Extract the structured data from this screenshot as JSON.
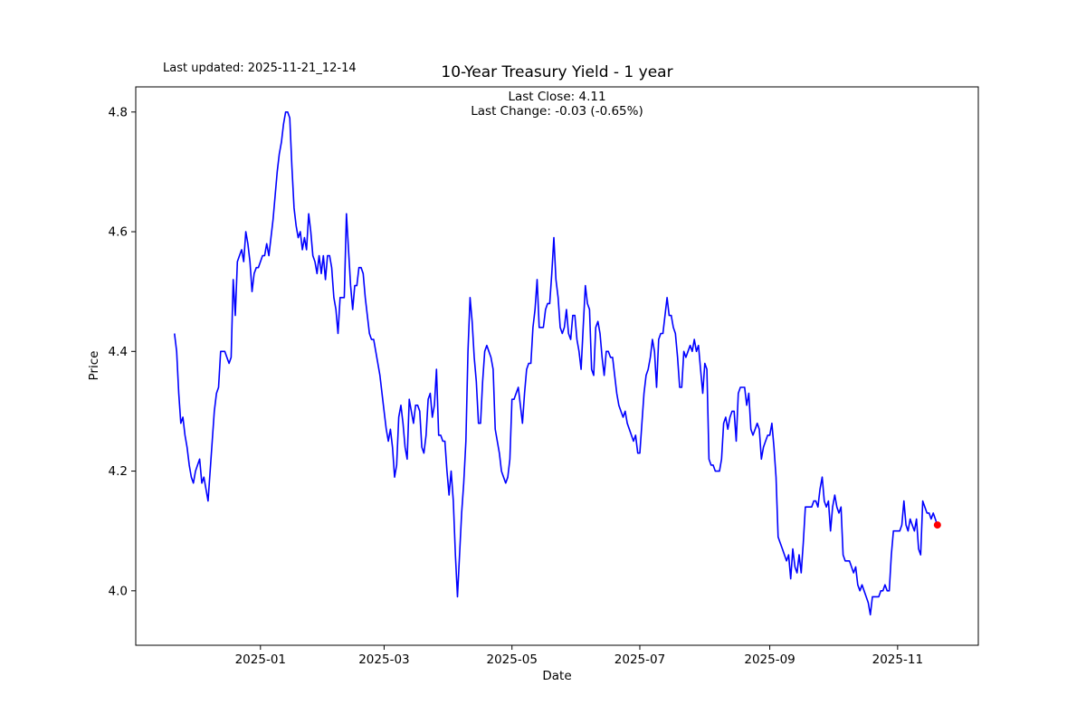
{
  "header": {
    "last_updated": "Last updated: 2025-11-21_12-14",
    "title": "10-Year Treasury Yield - 1 year",
    "subtitle_line1": "Last Close: 4.11",
    "subtitle_line2": "Last Change: -0.03 (-0.65%)"
  },
  "axes": {
    "xlabel": "Date",
    "ylabel": "Price"
  },
  "chart_data": {
    "type": "line",
    "title": "10-Year Treasury Yield - 1 year",
    "xlabel": "Date",
    "ylabel": "Price",
    "legend": "none",
    "grid": false,
    "line_color": "#0000ff",
    "line_width": 1.6,
    "marker": {
      "label": "last close",
      "day": 364,
      "value": 4.11,
      "color": "#ff0000",
      "radius": 4
    },
    "last_close": 4.11,
    "last_change": -0.03,
    "last_change_pct": "-0.65%",
    "start_date": "2024-11-21",
    "end_date": "2025-11-21",
    "x_unit": "calendar days since start_date (daily series, index = day offset)",
    "x_first_day": 0,
    "x_step_days": 1,
    "xlim_days": [
      -18.5,
      383.5
    ],
    "ylim": [
      3.909,
      4.842
    ],
    "y_ticks": [
      "4.0",
      "4.2",
      "4.4",
      "4.6",
      "4.8"
    ],
    "x_ticks": [
      {
        "day": 41,
        "label": "2025-01"
      },
      {
        "day": 100,
        "label": "2025-03"
      },
      {
        "day": 161,
        "label": "2025-05"
      },
      {
        "day": 222,
        "label": "2025-07"
      },
      {
        "day": 284,
        "label": "2025-09"
      },
      {
        "day": 345,
        "label": "2025-11"
      }
    ],
    "values": [
      4.43,
      4.4,
      4.33,
      4.28,
      4.29,
      4.26,
      4.24,
      4.21,
      4.19,
      4.18,
      4.2,
      4.21,
      4.22,
      4.18,
      4.19,
      4.17,
      4.15,
      4.2,
      4.25,
      4.3,
      4.33,
      4.34,
      4.4,
      4.4,
      4.4,
      4.39,
      4.38,
      4.39,
      4.52,
      4.46,
      4.55,
      4.56,
      4.57,
      4.55,
      4.6,
      4.58,
      4.55,
      4.5,
      4.53,
      4.54,
      4.54,
      4.55,
      4.56,
      4.56,
      4.58,
      4.56,
      4.59,
      4.62,
      4.66,
      4.7,
      4.73,
      4.75,
      4.78,
      4.8,
      4.8,
      4.79,
      4.71,
      4.64,
      4.61,
      4.59,
      4.6,
      4.57,
      4.59,
      4.57,
      4.63,
      4.6,
      4.56,
      4.55,
      4.53,
      4.56,
      4.53,
      4.56,
      4.52,
      4.56,
      4.56,
      4.54,
      4.49,
      4.47,
      4.43,
      4.49,
      4.49,
      4.49,
      4.63,
      4.57,
      4.51,
      4.47,
      4.51,
      4.51,
      4.54,
      4.54,
      4.53,
      4.49,
      4.46,
      4.43,
      4.42,
      4.42,
      4.4,
      4.38,
      4.36,
      4.33,
      4.3,
      4.27,
      4.25,
      4.27,
      4.24,
      4.19,
      4.21,
      4.29,
      4.31,
      4.28,
      4.24,
      4.22,
      4.32,
      4.3,
      4.28,
      4.31,
      4.31,
      4.3,
      4.24,
      4.23,
      4.26,
      4.32,
      4.33,
      4.29,
      4.31,
      4.37,
      4.26,
      4.26,
      4.25,
      4.25,
      4.2,
      4.16,
      4.2,
      4.15,
      4.06,
      3.99,
      4.06,
      4.13,
      4.18,
      4.25,
      4.4,
      4.49,
      4.45,
      4.39,
      4.35,
      4.28,
      4.28,
      4.35,
      4.4,
      4.41,
      4.4,
      4.39,
      4.37,
      4.27,
      4.25,
      4.23,
      4.2,
      4.19,
      4.18,
      4.19,
      4.22,
      4.32,
      4.32,
      4.33,
      4.34,
      4.31,
      4.28,
      4.33,
      4.37,
      4.38,
      4.38,
      4.44,
      4.47,
      4.52,
      4.44,
      4.44,
      4.44,
      4.47,
      4.48,
      4.48,
      4.53,
      4.59,
      4.52,
      4.49,
      4.44,
      4.43,
      4.44,
      4.47,
      4.43,
      4.42,
      4.46,
      4.46,
      4.42,
      4.4,
      4.37,
      4.44,
      4.51,
      4.48,
      4.47,
      4.37,
      4.36,
      4.44,
      4.45,
      4.43,
      4.39,
      4.36,
      4.4,
      4.4,
      4.39,
      4.39,
      4.36,
      4.33,
      4.31,
      4.3,
      4.29,
      4.3,
      4.28,
      4.27,
      4.26,
      4.25,
      4.26,
      4.23,
      4.23,
      4.28,
      4.33,
      4.36,
      4.37,
      4.39,
      4.42,
      4.4,
      4.34,
      4.42,
      4.43,
      4.43,
      4.46,
      4.49,
      4.46,
      4.46,
      4.44,
      4.43,
      4.39,
      4.34,
      4.34,
      4.4,
      4.39,
      4.4,
      4.41,
      4.4,
      4.42,
      4.4,
      4.41,
      4.37,
      4.33,
      4.38,
      4.37,
      4.22,
      4.21,
      4.21,
      4.2,
      4.2,
      4.2,
      4.22,
      4.28,
      4.29,
      4.27,
      4.29,
      4.3,
      4.3,
      4.25,
      4.33,
      4.34,
      4.34,
      4.34,
      4.31,
      4.33,
      4.27,
      4.26,
      4.27,
      4.28,
      4.27,
      4.22,
      4.24,
      4.25,
      4.26,
      4.26,
      4.28,
      4.24,
      4.19,
      4.09,
      4.08,
      4.07,
      4.06,
      4.05,
      4.06,
      4.02,
      4.07,
      4.04,
      4.03,
      4.06,
      4.03,
      4.08,
      4.14,
      4.14,
      4.14,
      4.14,
      4.15,
      4.15,
      4.14,
      4.17,
      4.19,
      4.15,
      4.14,
      4.15,
      4.1,
      4.14,
      4.16,
      4.14,
      4.13,
      4.14,
      4.06,
      4.05,
      4.05,
      4.05,
      4.04,
      4.03,
      4.04,
      4.01,
      4.0,
      4.01,
      4.0,
      3.99,
      3.98,
      3.96,
      3.99,
      3.99,
      3.99,
      3.99,
      4.0,
      4.0,
      4.01,
      4.0,
      4.0,
      4.06,
      4.1,
      4.1,
      4.1,
      4.1,
      4.11,
      4.15,
      4.11,
      4.1,
      4.12,
      4.11,
      4.1,
      4.12,
      4.07,
      4.06,
      4.15,
      4.14,
      4.13,
      4.13,
      4.12,
      4.13,
      4.12,
      4.11
    ]
  }
}
